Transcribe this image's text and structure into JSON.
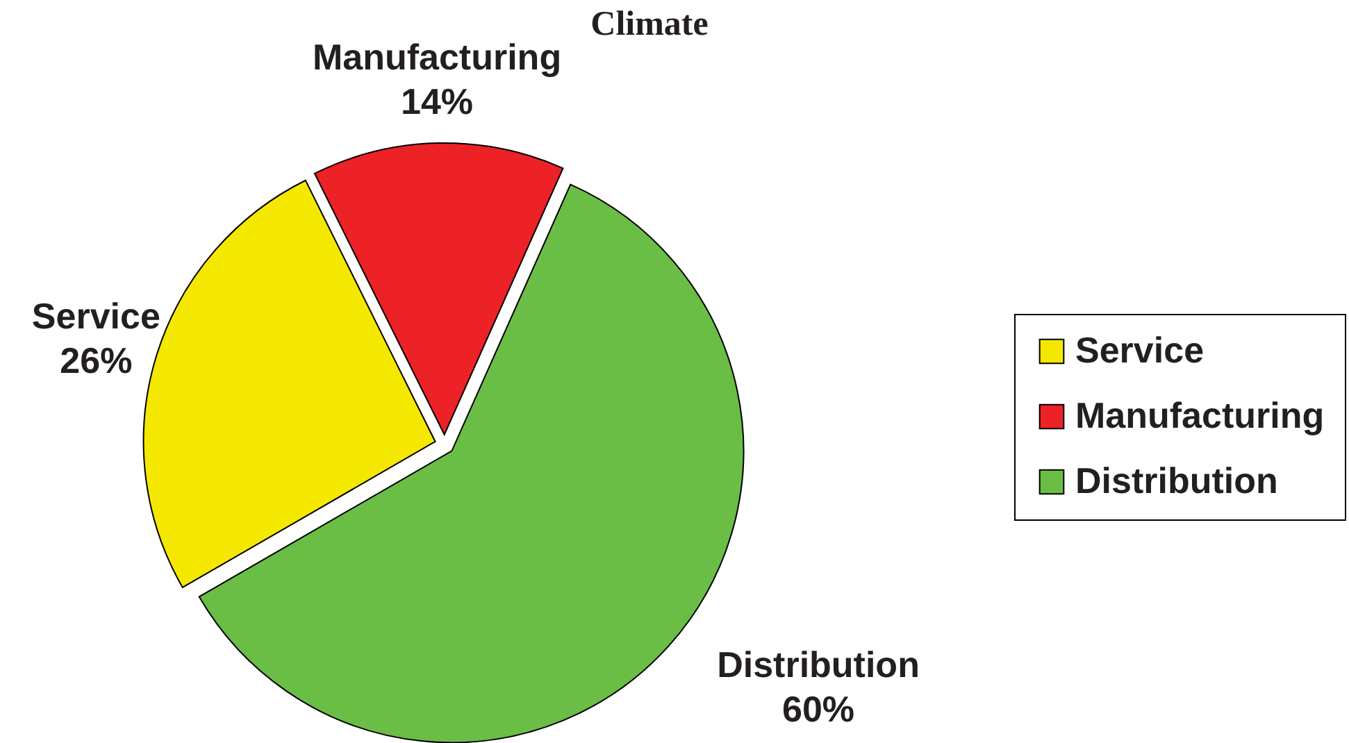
{
  "chart_data": {
    "type": "pie",
    "title": "Climate",
    "categories": [
      "Service",
      "Manufacturing",
      "Distribution"
    ],
    "values": [
      26,
      14,
      60
    ],
    "colors": [
      "#f5e800",
      "#ec2227",
      "#6abd45"
    ],
    "value_labels": [
      "26%",
      "14%",
      "60%"
    ],
    "legend": "right"
  }
}
